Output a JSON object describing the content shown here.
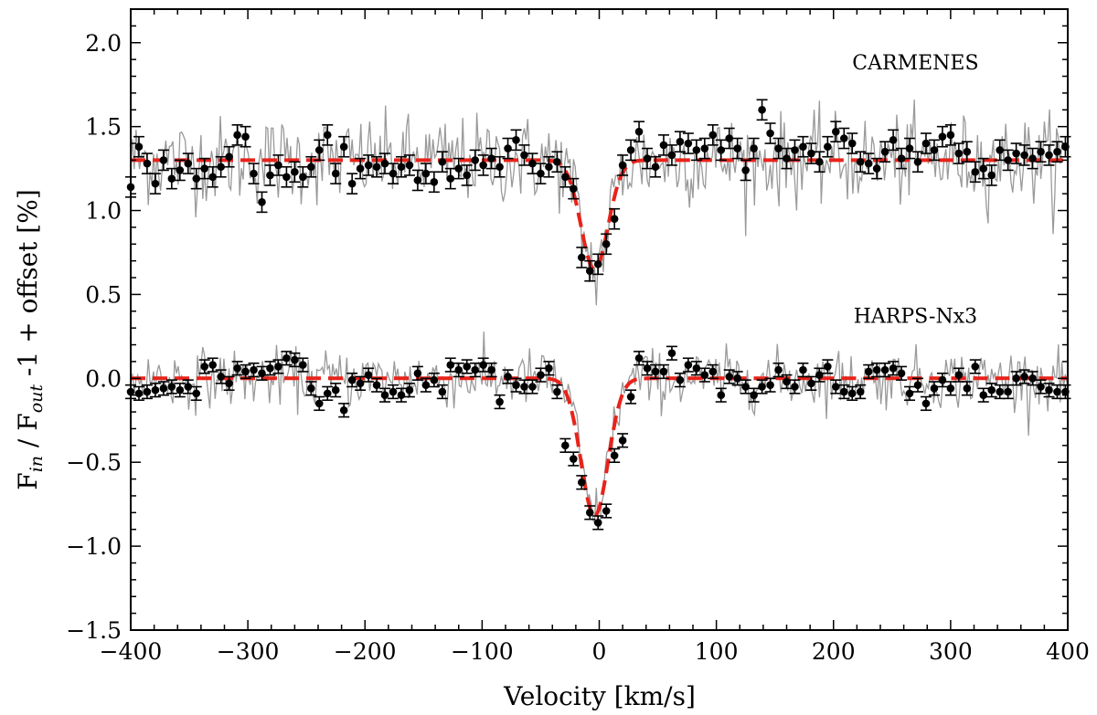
{
  "chart_data": {
    "type": "scatter",
    "title": "",
    "xlabel": "Velocity [km/s]",
    "ylabel": {
      "prefix": "F",
      "in_sub": "in",
      "mid": " / F",
      "out_sub": "out",
      "suffix": " -1  + offset [%]"
    },
    "xlim": [
      -400,
      400
    ],
    "ylim": [
      -1.5,
      2.2
    ],
    "xticks": [
      -400,
      -300,
      -200,
      -100,
      0,
      100,
      200,
      300,
      400
    ],
    "xtick_labels": [
      "−400",
      "−300",
      "−200",
      "−100",
      "0",
      "100",
      "200",
      "300",
      "400"
    ],
    "yticks": [
      -1.5,
      -1.0,
      -0.5,
      0.0,
      0.5,
      1.0,
      1.5,
      2.0
    ],
    "ytick_labels": [
      "−1.5",
      "−1.0",
      "−0.5",
      "0.0",
      "0.5",
      "1.0",
      "1.5",
      "2.0"
    ],
    "grid": false,
    "annotations": [
      {
        "text": "CARMENES",
        "x": 270,
        "y": 1.84
      },
      {
        "text": "HARPS-Nx3",
        "x": 270,
        "y": 0.33
      }
    ],
    "series": [
      {
        "name": "CARMENES",
        "offset": 1.3,
        "fit": {
          "center": -4,
          "depth": 0.65,
          "sigma": 11.5
        },
        "points": [
          [
            -400,
            1.14,
            0.06
          ],
          [
            -393,
            1.38,
            0.06
          ],
          [
            -386,
            1.28,
            0.06
          ],
          [
            -379,
            1.16,
            0.06
          ],
          [
            -372,
            1.3,
            0.06
          ],
          [
            -365,
            1.19,
            0.06
          ],
          [
            -358,
            1.24,
            0.06
          ],
          [
            -351,
            1.28,
            0.06
          ],
          [
            -344,
            1.19,
            0.06
          ],
          [
            -337,
            1.25,
            0.06
          ],
          [
            -330,
            1.2,
            0.06
          ],
          [
            -323,
            1.26,
            0.06
          ],
          [
            -316,
            1.32,
            0.06
          ],
          [
            -309,
            1.45,
            0.06
          ],
          [
            -302,
            1.44,
            0.06
          ],
          [
            -295,
            1.22,
            0.06
          ],
          [
            -288,
            1.05,
            0.06
          ],
          [
            -281,
            1.21,
            0.06
          ],
          [
            -274,
            1.27,
            0.06
          ],
          [
            -267,
            1.2,
            0.06
          ],
          [
            -260,
            1.23,
            0.06
          ],
          [
            -253,
            1.2,
            0.06
          ],
          [
            -246,
            1.26,
            0.06
          ],
          [
            -239,
            1.36,
            0.06
          ],
          [
            -232,
            1.45,
            0.06
          ],
          [
            -225,
            1.22,
            0.06
          ],
          [
            -218,
            1.38,
            0.06
          ],
          [
            -211,
            1.16,
            0.06
          ],
          [
            -204,
            1.25,
            0.06
          ],
          [
            -197,
            1.27,
            0.06
          ],
          [
            -190,
            1.26,
            0.06
          ],
          [
            -183,
            1.28,
            0.06
          ],
          [
            -176,
            1.22,
            0.06
          ],
          [
            -169,
            1.26,
            0.06
          ],
          [
            -162,
            1.27,
            0.06
          ],
          [
            -155,
            1.18,
            0.06
          ],
          [
            -148,
            1.22,
            0.06
          ],
          [
            -141,
            1.17,
            0.06
          ],
          [
            -134,
            1.29,
            0.06
          ],
          [
            -127,
            1.19,
            0.06
          ],
          [
            -120,
            1.25,
            0.06
          ],
          [
            -113,
            1.21,
            0.06
          ],
          [
            -106,
            1.3,
            0.06
          ],
          [
            -99,
            1.27,
            0.06
          ],
          [
            -92,
            1.31,
            0.06
          ],
          [
            -85,
            1.26,
            0.06
          ],
          [
            -78,
            1.37,
            0.06
          ],
          [
            -71,
            1.42,
            0.06
          ],
          [
            -64,
            1.33,
            0.06
          ],
          [
            -57,
            1.28,
            0.06
          ],
          [
            -50,
            1.22,
            0.06
          ],
          [
            -43,
            1.26,
            0.06
          ],
          [
            -36,
            1.29,
            0.06
          ],
          [
            -29,
            1.2,
            0.06
          ],
          [
            -22,
            1.13,
            0.06
          ],
          [
            -15,
            0.72,
            0.06
          ],
          [
            -8,
            0.64,
            0.06
          ],
          [
            -1,
            0.68,
            0.06
          ],
          [
            6,
            0.8,
            0.06
          ],
          [
            13,
            0.95,
            0.06
          ],
          [
            20,
            1.27,
            0.06
          ],
          [
            27,
            1.36,
            0.06
          ],
          [
            34,
            1.47,
            0.06
          ],
          [
            41,
            1.31,
            0.06
          ],
          [
            48,
            1.26,
            0.06
          ],
          [
            55,
            1.39,
            0.06
          ],
          [
            62,
            1.33,
            0.06
          ],
          [
            69,
            1.41,
            0.06
          ],
          [
            76,
            1.4,
            0.06
          ],
          [
            83,
            1.36,
            0.06
          ],
          [
            90,
            1.37,
            0.06
          ],
          [
            97,
            1.45,
            0.06
          ],
          [
            104,
            1.36,
            0.06
          ],
          [
            111,
            1.43,
            0.06
          ],
          [
            118,
            1.37,
            0.06
          ],
          [
            125,
            1.24,
            0.06
          ],
          [
            132,
            1.37,
            0.06
          ],
          [
            139,
            1.6,
            0.06
          ],
          [
            146,
            1.46,
            0.06
          ],
          [
            153,
            1.37,
            0.06
          ],
          [
            160,
            1.31,
            0.06
          ],
          [
            167,
            1.36,
            0.06
          ],
          [
            174,
            1.38,
            0.06
          ],
          [
            181,
            1.34,
            0.06
          ],
          [
            188,
            1.29,
            0.06
          ],
          [
            195,
            1.38,
            0.06
          ],
          [
            202,
            1.47,
            0.06
          ],
          [
            209,
            1.43,
            0.06
          ],
          [
            216,
            1.4,
            0.06
          ],
          [
            223,
            1.29,
            0.06
          ],
          [
            230,
            1.28,
            0.06
          ],
          [
            237,
            1.25,
            0.06
          ],
          [
            244,
            1.35,
            0.06
          ],
          [
            251,
            1.42,
            0.06
          ],
          [
            258,
            1.31,
            0.06
          ],
          [
            265,
            1.37,
            0.06
          ],
          [
            272,
            1.29,
            0.06
          ],
          [
            279,
            1.4,
            0.06
          ],
          [
            286,
            1.36,
            0.06
          ],
          [
            293,
            1.44,
            0.06
          ],
          [
            300,
            1.45,
            0.06
          ],
          [
            307,
            1.34,
            0.06
          ],
          [
            314,
            1.35,
            0.06
          ],
          [
            321,
            1.23,
            0.06
          ],
          [
            328,
            1.25,
            0.06
          ],
          [
            335,
            1.21,
            0.06
          ],
          [
            342,
            1.36,
            0.06
          ],
          [
            349,
            1.3,
            0.06
          ],
          [
            356,
            1.34,
            0.06
          ],
          [
            363,
            1.33,
            0.06
          ],
          [
            370,
            1.31,
            0.06
          ],
          [
            377,
            1.35,
            0.06
          ],
          [
            384,
            1.33,
            0.06
          ],
          [
            391,
            1.35,
            0.06
          ],
          [
            398,
            1.38,
            0.06
          ]
        ]
      },
      {
        "name": "HARPS-Nx3",
        "offset": 0.0,
        "fit": {
          "center": -4,
          "depth": 0.82,
          "sigma": 11.5
        },
        "points": [
          [
            -400,
            -0.08,
            0.04
          ],
          [
            -393,
            -0.09,
            0.04
          ],
          [
            -386,
            -0.08,
            0.04
          ],
          [
            -379,
            -0.07,
            0.04
          ],
          [
            -372,
            -0.06,
            0.04
          ],
          [
            -365,
            -0.05,
            0.04
          ],
          [
            -358,
            -0.07,
            0.04
          ],
          [
            -351,
            -0.05,
            0.04
          ],
          [
            -344,
            -0.09,
            0.04
          ],
          [
            -337,
            0.07,
            0.04
          ],
          [
            -330,
            0.08,
            0.04
          ],
          [
            -323,
            0.01,
            0.04
          ],
          [
            -316,
            -0.03,
            0.04
          ],
          [
            -309,
            0.06,
            0.04
          ],
          [
            -302,
            0.04,
            0.04
          ],
          [
            -295,
            0.05,
            0.04
          ],
          [
            -288,
            0.03,
            0.04
          ],
          [
            -281,
            0.06,
            0.04
          ],
          [
            -274,
            0.07,
            0.04
          ],
          [
            -267,
            0.12,
            0.04
          ],
          [
            -260,
            0.11,
            0.04
          ],
          [
            -253,
            0.08,
            0.04
          ],
          [
            -246,
            -0.06,
            0.04
          ],
          [
            -239,
            -0.15,
            0.04
          ],
          [
            -232,
            -0.09,
            0.04
          ],
          [
            -225,
            -0.07,
            0.04
          ],
          [
            -218,
            -0.19,
            0.04
          ],
          [
            -211,
            -0.01,
            0.04
          ],
          [
            -204,
            -0.03,
            0.04
          ],
          [
            -197,
            0.02,
            0.04
          ],
          [
            -190,
            -0.04,
            0.04
          ],
          [
            -183,
            -0.1,
            0.04
          ],
          [
            -176,
            -0.08,
            0.04
          ],
          [
            -169,
            -0.1,
            0.04
          ],
          [
            -162,
            -0.07,
            0.04
          ],
          [
            -155,
            0.03,
            0.04
          ],
          [
            -148,
            -0.04,
            0.04
          ],
          [
            -141,
            -0.01,
            0.04
          ],
          [
            -134,
            -0.08,
            0.04
          ],
          [
            -127,
            0.08,
            0.04
          ],
          [
            -120,
            0.05,
            0.04
          ],
          [
            -113,
            0.07,
            0.04
          ],
          [
            -106,
            0.05,
            0.04
          ],
          [
            -99,
            0.08,
            0.04
          ],
          [
            -92,
            0.05,
            0.04
          ],
          [
            -85,
            -0.14,
            0.04
          ],
          [
            -78,
            0.01,
            0.04
          ],
          [
            -71,
            -0.04,
            0.04
          ],
          [
            -64,
            -0.05,
            0.04
          ],
          [
            -57,
            -0.05,
            0.04
          ],
          [
            -50,
            0.02,
            0.04
          ],
          [
            -43,
            0.06,
            0.04
          ],
          [
            -36,
            -0.08,
            0.04
          ],
          [
            -29,
            -0.4,
            0.04
          ],
          [
            -22,
            -0.48,
            0.04
          ],
          [
            -15,
            -0.62,
            0.04
          ],
          [
            -8,
            -0.8,
            0.04
          ],
          [
            -1,
            -0.86,
            0.04
          ],
          [
            6,
            -0.79,
            0.04
          ],
          [
            13,
            -0.46,
            0.04
          ],
          [
            20,
            -0.37,
            0.04
          ],
          [
            27,
            -0.11,
            0.04
          ],
          [
            34,
            0.12,
            0.04
          ],
          [
            41,
            0.06,
            0.04
          ],
          [
            48,
            0.04,
            0.04
          ],
          [
            55,
            0.04,
            0.04
          ],
          [
            62,
            0.15,
            0.04
          ],
          [
            69,
            -0.01,
            0.04
          ],
          [
            76,
            0.08,
            0.04
          ],
          [
            83,
            0.06,
            0.04
          ],
          [
            90,
            0.02,
            0.04
          ],
          [
            97,
            0.04,
            0.04
          ],
          [
            104,
            -0.1,
            0.04
          ],
          [
            111,
            0.01,
            0.04
          ],
          [
            118,
            0.0,
            0.04
          ],
          [
            125,
            -0.05,
            0.04
          ],
          [
            132,
            -0.1,
            0.04
          ],
          [
            139,
            -0.05,
            0.04
          ],
          [
            146,
            -0.04,
            0.04
          ],
          [
            153,
            0.05,
            0.04
          ],
          [
            160,
            -0.02,
            0.04
          ],
          [
            167,
            -0.05,
            0.04
          ],
          [
            174,
            0.05,
            0.04
          ],
          [
            181,
            -0.03,
            0.04
          ],
          [
            188,
            0.02,
            0.04
          ],
          [
            195,
            0.07,
            0.04
          ],
          [
            202,
            -0.05,
            0.04
          ],
          [
            209,
            -0.08,
            0.04
          ],
          [
            216,
            -0.09,
            0.04
          ],
          [
            223,
            -0.08,
            0.04
          ],
          [
            230,
            0.04,
            0.04
          ],
          [
            237,
            0.05,
            0.04
          ],
          [
            244,
            0.05,
            0.04
          ],
          [
            251,
            0.06,
            0.04
          ],
          [
            258,
            0.03,
            0.04
          ],
          [
            265,
            -0.09,
            0.04
          ],
          [
            272,
            -0.04,
            0.04
          ],
          [
            279,
            -0.15,
            0.04
          ],
          [
            286,
            -0.06,
            0.04
          ],
          [
            293,
            -0.01,
            0.04
          ],
          [
            300,
            -0.06,
            0.04
          ],
          [
            307,
            0.02,
            0.04
          ],
          [
            314,
            -0.06,
            0.04
          ],
          [
            321,
            0.07,
            0.04
          ],
          [
            328,
            -0.1,
            0.04
          ],
          [
            335,
            -0.07,
            0.04
          ],
          [
            342,
            -0.08,
            0.04
          ],
          [
            349,
            -0.08,
            0.04
          ],
          [
            356,
            0.0,
            0.04
          ],
          [
            363,
            0.01,
            0.04
          ],
          [
            370,
            0.0,
            0.04
          ],
          [
            377,
            -0.05,
            0.04
          ],
          [
            384,
            -0.07,
            0.04
          ],
          [
            391,
            -0.08,
            0.04
          ],
          [
            398,
            -0.08,
            0.04
          ]
        ]
      }
    ],
    "raw_spectra": {
      "style": "grey thin line",
      "noise_sigma": [
        0.13,
        0.085
      ],
      "step": 1.5
    },
    "colors": {
      "fit": "#e8231a",
      "points": "#000000",
      "raw": "#9a9a9a",
      "axes": "#000000"
    }
  }
}
